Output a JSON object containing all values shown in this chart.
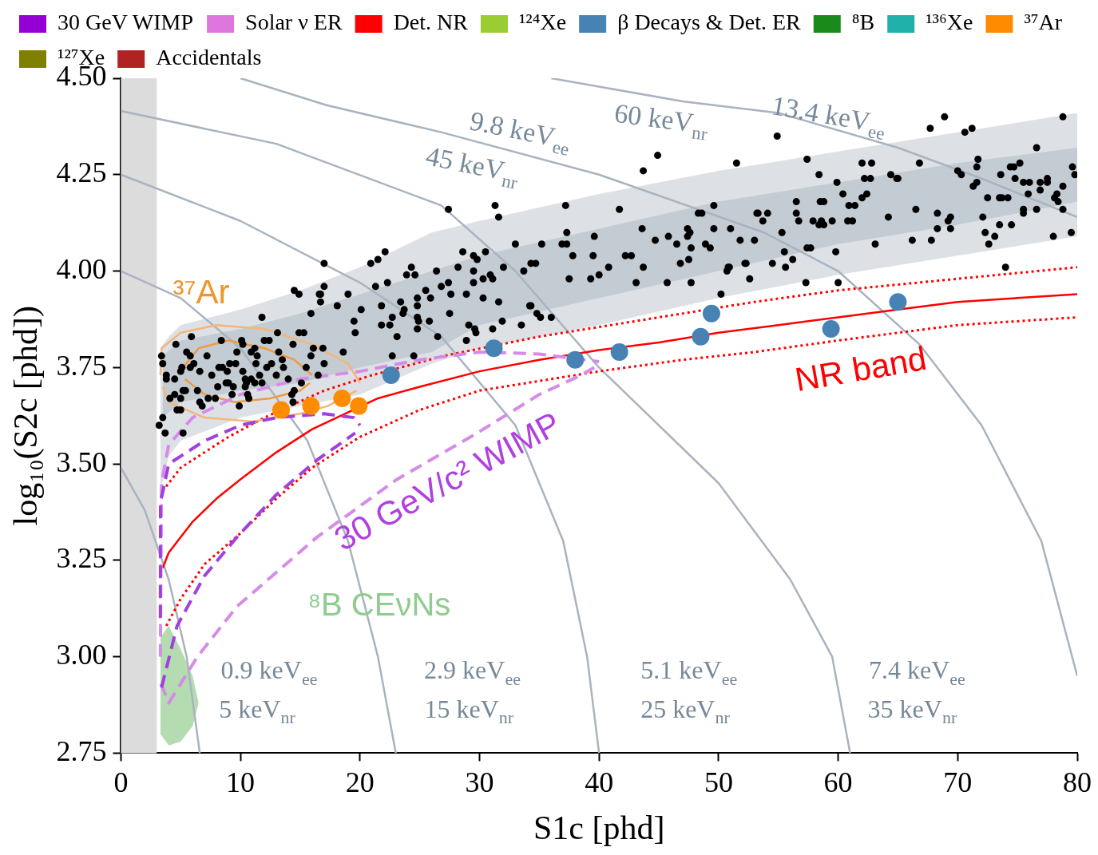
{
  "chart_data": {
    "type": "scatter",
    "xlabel": "S1c [phd]",
    "ylabel": "log₁₀(S2c [phd])",
    "xlim": [
      0,
      80
    ],
    "xticks": [
      0,
      10,
      20,
      30,
      40,
      50,
      60,
      70,
      80
    ],
    "ylim": [
      2.75,
      4.5
    ],
    "yticks": [
      {
        "value": 2.75,
        "label": "2.75"
      },
      {
        "value": 3,
        "label": "3.00"
      },
      {
        "value": 3.25,
        "label": "3.25"
      },
      {
        "value": 3.5,
        "label": "3.50"
      },
      {
        "value": 3.75,
        "label": "3.75"
      },
      {
        "value": 4,
        "label": "4.00"
      },
      {
        "value": 4.25,
        "label": "4.25"
      },
      {
        "value": 4.5,
        "label": "4.50"
      }
    ],
    "grid": false,
    "legend": "top",
    "bands": [
      {
        "axis": "x",
        "from": 0,
        "to": 3,
        "color": "#dcdcdc"
      }
    ],
    "annotations": [
      "45 keV$_{nr}$",
      "9.8 keV$_{ee}$",
      "60 keV$_{nr}$",
      "13.4 keV$_{ee}$",
      "0.9 keV$_{ee}$",
      "5 keV$_{nr}$",
      "2.9 keV$_{ee}$",
      "15 keV$_{nr}$",
      "5.1 keV$_{ee}$",
      "25 keV$_{nr}$",
      "7.4 keV$_{ee}$",
      "35 keV$_{nr}$",
      "³⁷Ar",
      "NR band",
      "30 GeV/c² WIMP",
      "⁸B CEνNs"
    ],
    "series": [
      {
        "type": "area",
        "color": "#dde1e6",
        "x": [
          3.3,
          4,
          5,
          10,
          15,
          20,
          26,
          30,
          40,
          50,
          60,
          70,
          80
        ],
        "values": [
          null,
          null,
          null,
          null,
          null,
          null,
          null,
          null,
          null,
          null,
          null,
          null,
          null
        ],
        "upper": [
          3.8,
          3.83,
          3.86,
          3.9,
          3.95,
          4.01,
          4.1,
          4.13,
          4.2,
          4.26,
          4.31,
          4.36,
          4.41
        ],
        "lower": [
          3.43,
          3.52,
          3.56,
          3.62,
          3.65,
          3.68,
          3.76,
          3.8,
          3.86,
          3.93,
          3.99,
          4.04,
          4.09
        ]
      },
      {
        "type": "area",
        "color": "#c3cbd3",
        "x": [
          3.5,
          5,
          10,
          15,
          20,
          26,
          30,
          40,
          50,
          60,
          70,
          80
        ],
        "values": [
          null,
          null,
          null,
          null,
          null,
          null,
          null,
          null,
          null,
          null,
          null,
          null
        ],
        "upper": [
          3.78,
          3.82,
          3.85,
          3.89,
          3.94,
          4.0,
          4.04,
          4.11,
          4.18,
          4.23,
          4.28,
          4.32
        ],
        "lower": [
          3.62,
          3.66,
          3.69,
          3.71,
          3.75,
          3.79,
          3.86,
          3.93,
          4.0,
          4.07,
          4.12,
          4.18
        ]
      },
      {
        "type": "area",
        "color": "#b5dcb0",
        "x": [
          3.3,
          4,
          5,
          6,
          6.5
        ],
        "values": [
          null,
          null,
          null,
          null,
          null
        ],
        "upper": [
          3.05,
          3.08,
          3.02,
          2.95,
          2.88
        ],
        "lower": [
          2.8,
          2.77,
          2.78,
          2.82,
          2.88
        ]
      },
      {
        "type": "line",
        "color": "#a9b3bf",
        "line_style": "solid",
        "x": [
          0,
          2,
          4,
          5.5,
          6.6
        ],
        "values": [
          3.49,
          3.38,
          3.2,
          3.0,
          2.75
        ]
      },
      {
        "type": "line",
        "color": "#a9b3bf",
        "line_style": "solid",
        "x": [
          0,
          5,
          10,
          15.6,
          19,
          21.5,
          23
        ],
        "values": [
          4.0,
          3.93,
          3.8,
          3.56,
          3.3,
          3.0,
          2.75
        ]
      },
      {
        "type": "line",
        "color": "#a9b3bf",
        "line_style": "solid",
        "x": [
          0,
          10,
          20,
          26.8,
          33,
          37,
          39,
          40
        ],
        "values": [
          4.25,
          4.13,
          3.97,
          3.83,
          3.6,
          3.3,
          3.0,
          2.75
        ]
      },
      {
        "type": "line",
        "color": "#a9b3bf",
        "line_style": "solid",
        "x": [
          0,
          13,
          26.8,
          33,
          40,
          50,
          56,
          59.5,
          61
        ],
        "values": [
          4.415,
          4.33,
          4.17,
          4.0,
          3.75,
          3.45,
          3.2,
          3.0,
          2.75
        ]
      },
      {
        "type": "line",
        "color": "#a9b3bf",
        "line_style": "solid",
        "x": [
          10,
          17.2,
          26.8,
          40,
          53.8,
          60,
          66.8,
          72,
          77,
          80
        ],
        "values": [
          4.5,
          4.43,
          4.36,
          4.25,
          4.1,
          4.0,
          3.81,
          3.6,
          3.3,
          2.95
        ]
      },
      {
        "type": "line",
        "color": "#a9b3bf",
        "line_style": "solid",
        "x": [
          36,
          47,
          55,
          65,
          72,
          80
        ],
        "values": [
          4.5,
          4.44,
          4.41,
          4.32,
          4.24,
          4.14
        ]
      },
      {
        "type": "line",
        "color": "#ff0000",
        "line_style": "solid",
        "x": [
          3.5,
          4,
          6,
          8,
          10,
          13,
          16,
          21.5,
          25,
          30,
          35,
          40,
          45,
          50,
          55,
          60,
          65,
          70,
          75,
          80
        ],
        "values": [
          3.23,
          3.27,
          3.35,
          3.41,
          3.46,
          3.53,
          3.59,
          3.67,
          3.7,
          3.74,
          3.77,
          3.795,
          3.815,
          3.84,
          3.86,
          3.88,
          3.9,
          3.92,
          3.93,
          3.94
        ]
      },
      {
        "type": "line",
        "color": "#ff0000",
        "line_style": "dotted",
        "x": [
          3.5,
          5,
          9,
          12,
          17,
          21,
          27,
          35,
          45,
          53,
          60,
          70,
          80
        ],
        "values": [
          3.43,
          3.49,
          3.57,
          3.62,
          3.69,
          3.73,
          3.78,
          3.83,
          3.88,
          3.92,
          3.95,
          3.98,
          4.01
        ]
      },
      {
        "type": "line",
        "color": "#ff0000",
        "line_style": "dotted",
        "x": [
          3.8,
          5,
          7,
          10,
          13,
          16,
          20,
          25,
          30,
          40,
          47,
          53,
          60,
          70,
          80
        ],
        "values": [
          3.08,
          3.15,
          3.24,
          3.32,
          3.41,
          3.49,
          3.57,
          3.64,
          3.69,
          3.74,
          3.77,
          3.79,
          3.82,
          3.86,
          3.88
        ]
      },
      {
        "type": "line",
        "color": "#f4b67a",
        "line_style": "solid",
        "x": [
          3.3,
          3.4,
          5,
          8,
          12,
          16,
          19,
          20
        ],
        "values": [
          3.73,
          3.8,
          3.84,
          3.86,
          3.85,
          3.81,
          3.76,
          3.71
        ]
      },
      {
        "type": "line",
        "color": "#f4b67a",
        "line_style": "solid",
        "x": [
          3.5,
          4,
          7,
          11,
          15,
          17.3,
          19.7
        ],
        "values": [
          3.7,
          3.66,
          3.62,
          3.61,
          3.63,
          3.65,
          3.69
        ]
      },
      {
        "type": "line",
        "color": "#f09a40",
        "line_style": "solid",
        "x": [
          5.2,
          6.5,
          9,
          12,
          14.5,
          16
        ],
        "values": [
          3.75,
          3.8,
          3.82,
          3.8,
          3.77,
          3.73
        ]
      },
      {
        "type": "line",
        "color": "#f09a40",
        "line_style": "solid",
        "x": [
          5.35,
          7,
          9.5,
          12.5,
          15,
          15.8
        ],
        "values": [
          3.72,
          3.68,
          3.66,
          3.67,
          3.69,
          3.71
        ]
      },
      {
        "type": "line",
        "color": "#d68be8",
        "line_style": "dashed",
        "x": [
          3.3,
          3.4,
          4,
          6,
          10,
          15,
          20,
          25,
          30,
          35,
          40
        ],
        "values": [
          3.0,
          3.45,
          3.55,
          3.62,
          3.68,
          3.72,
          3.74,
          3.77,
          3.79,
          3.785,
          3.765
        ]
      },
      {
        "type": "line",
        "color": "#d68be8",
        "line_style": "dashed",
        "x": [
          3.35,
          4,
          5,
          6.4,
          9.7,
          16.4,
          23.1,
          29.8,
          35,
          38.5,
          39.6
        ],
        "values": [
          2.93,
          2.88,
          2.93,
          3.0,
          3.13,
          3.31,
          3.46,
          3.58,
          3.68,
          3.73,
          3.75
        ]
      },
      {
        "type": "line",
        "color": "#a040dd",
        "line_style": "dashed",
        "x": [
          3.3,
          3.31,
          4,
          7,
          10,
          13,
          17,
          19.5,
          20
        ],
        "values": [
          3.1,
          3.4,
          3.5,
          3.56,
          3.6,
          3.62,
          3.63,
          3.62,
          3.6
        ]
      },
      {
        "type": "line",
        "color": "#a040dd",
        "line_style": "dashed",
        "x": [
          3.4,
          4.7,
          7,
          9.7,
          13,
          16.4,
          19.6
        ],
        "values": [
          2.92,
          3.08,
          3.21,
          3.31,
          3.42,
          3.51,
          3.58
        ]
      },
      {
        "color": "#000000",
        "marker": "circle",
        "x": [
          17.0,
          20.9,
          21.5,
          22.1,
          24.3,
          23.9,
          24.6,
          26.4,
          14.5,
          14.9,
          16.6,
          16.7,
          17.0,
          16.7,
          21.3,
          22.3,
          19.0,
          15.9,
          18.1,
          20.1,
          21.8,
          23.4,
          23.7,
          23.6,
          24.8,
          25.5,
          25.9,
          24.8,
          24.8,
          24.9,
          25.8,
          24.8,
          11.8,
          19.5,
          19.6,
          21.8,
          22.5,
          22.7,
          23.1,
          26.5,
          14.9,
          15.3,
          13.1,
          12.0,
          12.4,
          14.4,
          8.4,
          10.1,
          10.2,
          5.9,
          4.6,
          3.4,
          3.5,
          5.5,
          5.8,
          7.2,
          9.7,
          10.9,
          11.2,
          11.4,
          13.2,
          13.5,
          16.1,
          16.9,
          15.9,
          18.6,
          17.0,
          15.5,
          16.5,
          22.7,
          24.5,
          6.1,
          5.8,
          5.0,
          5.1,
          6.6,
          8.2,
          8.5,
          9.1,
          9.6,
          8.9,
          11.3,
          12.2,
          12.6,
          13.6,
          10.2,
          7.6,
          3.8,
          3.8,
          4.5,
          5.2,
          5.4,
          6.4,
          8.1,
          8.8,
          9.0,
          9.4,
          10.4,
          10.5,
          10.9,
          11.2,
          11.6,
          11.8,
          13.0,
          14.0,
          10.4,
          15.1,
          7.3,
          7.9,
          9.3,
          10.6,
          10.7,
          4.1,
          4.5,
          5.0,
          6.6,
          6.8,
          9.9,
          14.5,
          14.3,
          14.4,
          4.7,
          5.0,
          3.5,
          3.2,
          3.7,
          5.2,
          27.4,
          31.3,
          31.6,
          37.2,
          41.7,
          43.7,
          44.9,
          51.5,
          49.6,
          48.3,
          48.6,
          53.2,
          53.7,
          37.3,
          36.9,
          37.3,
          39.6,
          43.6,
          33.0,
          35.2,
          28.6,
          30.5,
          29.5,
          29.8,
          28.2,
          32.0,
          33.7,
          34.3,
          34.7,
          37.8,
          39.5,
          42.2,
          42.7,
          44.7,
          45.8,
          46.5,
          47.4,
          47.6,
          47.4,
          47.7,
          49.6,
          51.0,
          51.8,
          53.0,
          48.9,
          49.3,
          47.5,
          46.8,
          43.7,
          40.8,
          40.0,
          39.3,
          37.5,
          45.7,
          47.7,
          43.1,
          50.9,
          50.8,
          50.7,
          52.3,
          52.2,
          52.6,
          50.2,
          29.5,
          30.3,
          29.5,
          30.9,
          31.1,
          26.8,
          27.4,
          28.9,
          27.6,
          30.3,
          31.6,
          34.2,
          34.3,
          34.8,
          35.1,
          36.0,
          27.5,
          29.1,
          29.6,
          29.7,
          28.9,
          31.1,
          31.9,
          33.5,
          54.9,
          67.7,
          68.9,
          70.6,
          71.2,
          78.8,
          57.4,
          58.4,
          59.9,
          60.4,
          62.0,
          62.8,
          62.2,
          62.7,
          62.0,
          62.4,
          60.9,
          61.4,
          64.4,
          64.9,
          65.0,
          66.8,
          70.0,
          70.3,
          71.7,
          71.6,
          71.6,
          71.3,
          73.6,
          74.4,
          74.7,
          75.2,
          74.8,
          75.5,
          76.0,
          75.9,
          76.9,
          77.5,
          77.5,
          76.9,
          78.8,
          78.3,
          78.1,
          78.4,
          78.8,
          79.6,
          79.8,
          76.6,
          74.2,
          73.5,
          73.7,
          72.5,
          66.5,
          68.3,
          69.4,
          69.2,
          68.3,
          69.4,
          64.2,
          72.1,
          73.5,
          74.5,
          72.3,
          73.1,
          72.6,
          75.5,
          75.5,
          76.6,
          78.0,
          79.5,
          74.0,
          66.2,
          67.8,
          63.1,
          59.8,
          57.4,
          57.7,
          58.4,
          58.6,
          58.8,
          58.5,
          58.8,
          57.9,
          59.5,
          60.8,
          61.2,
          56.5,
          56.5,
          56.7,
          55.3,
          53.3,
          54.1,
          54.5,
          55.6,
          55.5,
          56.2,
          57.3,
          60.0
        ],
        "values": [
          4.02,
          4.02,
          4.03,
          4.05,
          4.01,
          3.99,
          3.99,
          4.0,
          3.95,
          3.94,
          3.94,
          3.94,
          3.96,
          3.92,
          3.96,
          3.97,
          3.94,
          3.89,
          3.91,
          3.9,
          3.91,
          3.92,
          3.9,
          3.89,
          3.93,
          3.95,
          3.93,
          3.91,
          3.88,
          3.87,
          3.87,
          3.85,
          3.88,
          3.87,
          3.84,
          3.86,
          3.86,
          3.88,
          3.83,
          3.83,
          3.84,
          3.84,
          3.84,
          3.82,
          3.82,
          3.81,
          3.82,
          3.82,
          3.81,
          3.83,
          3.81,
          3.78,
          3.76,
          3.79,
          3.78,
          3.78,
          3.79,
          3.79,
          3.8,
          3.78,
          3.79,
          3.77,
          3.8,
          3.8,
          3.78,
          3.79,
          3.76,
          3.75,
          3.73,
          3.78,
          3.78,
          3.76,
          3.75,
          3.74,
          3.75,
          3.74,
          3.75,
          3.75,
          3.76,
          3.76,
          3.74,
          3.76,
          3.75,
          3.76,
          3.75,
          3.74,
          3.73,
          3.73,
          3.72,
          3.72,
          3.69,
          3.69,
          3.69,
          3.7,
          3.71,
          3.71,
          3.7,
          3.72,
          3.71,
          3.72,
          3.71,
          3.73,
          3.71,
          3.73,
          3.72,
          3.7,
          3.71,
          3.67,
          3.67,
          3.68,
          3.68,
          3.67,
          3.67,
          3.68,
          3.67,
          3.66,
          3.65,
          3.65,
          3.69,
          3.68,
          3.66,
          3.64,
          3.64,
          3.62,
          3.6,
          3.58,
          3.58,
          4.16,
          4.17,
          4.14,
          4.17,
          4.16,
          4.26,
          4.3,
          4.28,
          4.17,
          4.15,
          4.15,
          4.15,
          4.13,
          4.1,
          4.07,
          4.07,
          4.09,
          4.11,
          4.07,
          4.07,
          4.05,
          4.05,
          4.04,
          4.03,
          4.01,
          4.01,
          4.0,
          4.02,
          4.02,
          4.04,
          4.04,
          4.04,
          4.04,
          4.08,
          4.09,
          4.07,
          4.11,
          4.1,
          4.09,
          4.06,
          4.11,
          4.11,
          4.08,
          4.08,
          4.07,
          4.06,
          4.03,
          4.02,
          4.01,
          4.01,
          3.99,
          3.98,
          3.98,
          3.97,
          3.97,
          3.97,
          4.01,
          4.01,
          4.0,
          4.02,
          4.02,
          3.98,
          3.94,
          4.0,
          3.98,
          3.97,
          3.99,
          3.98,
          3.96,
          3.97,
          3.94,
          3.94,
          3.93,
          3.92,
          3.91,
          3.91,
          3.89,
          3.88,
          3.88,
          3.89,
          3.86,
          3.85,
          3.84,
          3.82,
          3.85,
          3.87,
          3.86,
          4.35,
          4.37,
          4.4,
          4.36,
          4.37,
          4.4,
          4.29,
          4.25,
          4.23,
          4.2,
          4.28,
          4.28,
          4.24,
          4.24,
          4.19,
          4.2,
          4.17,
          4.17,
          4.25,
          4.24,
          4.24,
          4.28,
          4.26,
          4.25,
          4.29,
          4.27,
          4.23,
          4.22,
          4.25,
          4.27,
          4.27,
          4.28,
          4.24,
          4.23,
          4.23,
          4.2,
          4.23,
          4.24,
          4.23,
          4.21,
          4.22,
          4.2,
          4.19,
          4.18,
          4.16,
          4.27,
          4.25,
          4.32,
          4.19,
          4.19,
          4.19,
          4.19,
          4.16,
          4.15,
          4.14,
          4.13,
          4.11,
          4.11,
          4.14,
          4.14,
          4.12,
          4.12,
          4.1,
          4.09,
          4.07,
          4.16,
          4.15,
          4.16,
          4.09,
          4.1,
          4.01,
          4.08,
          4.08,
          4.07,
          4.05,
          4.06,
          4.06,
          4.12,
          4.13,
          4.12,
          4.18,
          4.18,
          4.13,
          4.13,
          4.13,
          4.13,
          4.18,
          4.15,
          4.13,
          4.1,
          4.15,
          4.15,
          4.02,
          4.01,
          4.05,
          4.03,
          3.97,
          3.97
        ]
      },
      {
        "name": "30 GeV WIMP",
        "color": "#9400d3",
        "marker": "square"
      },
      {
        "name": "Solar ν ER",
        "color": "#dd77dd",
        "marker": "square"
      },
      {
        "name": "Det. NR",
        "color": "#ff0000",
        "marker": "square"
      },
      {
        "name": "¹²⁴Xe",
        "color": "#9acd32",
        "marker": "square"
      },
      {
        "name": "β Decays & Det. ER",
        "color": "#4682b4",
        "marker": "circle",
        "x": [
          22.6,
          31.2,
          38.0,
          41.7,
          48.5,
          49.4,
          59.4,
          65.0
        ],
        "values": [
          3.73,
          3.8,
          3.77,
          3.79,
          3.83,
          3.89,
          3.85,
          3.92
        ]
      },
      {
        "name": "⁸B",
        "color": "#1a8a1a",
        "marker": "square"
      },
      {
        "name": "¹³⁶Xe",
        "color": "#20b2aa",
        "marker": "square"
      },
      {
        "name": "³⁷Ar",
        "color": "#ff8c00",
        "marker": "circle",
        "x": [
          13.4,
          15.9,
          18.5,
          19.9
        ],
        "values": [
          3.64,
          3.65,
          3.67,
          3.65
        ]
      },
      {
        "name": "¹²⁷Xe",
        "color": "#808000",
        "marker": "square"
      },
      {
        "name": "Accidentals",
        "color": "#b22222",
        "marker": "square"
      }
    ]
  }
}
